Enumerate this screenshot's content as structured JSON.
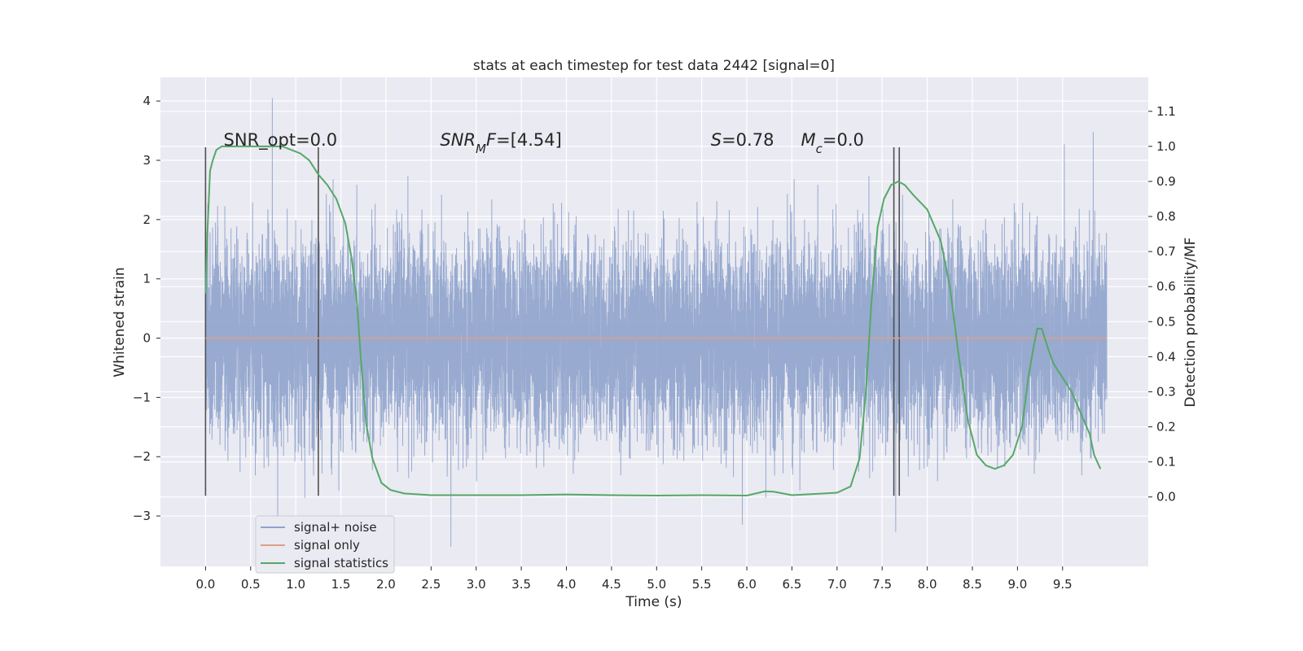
{
  "chart_data": {
    "type": "line",
    "title": "stats at each timestep for test data 2442 [signal=0]",
    "xlabel": "Time (s)",
    "ylabel": "Whitened strain",
    "y2label": "Detection probability/MF",
    "xlim": [
      -0.5,
      10.45
    ],
    "ylim": [
      -3.85,
      4.4
    ],
    "y2lim": [
      -0.198,
      1.197
    ],
    "xticks": [
      0.0,
      0.5,
      1.0,
      1.5,
      2.0,
      2.5,
      3.0,
      3.5,
      4.0,
      4.5,
      5.0,
      5.5,
      6.0,
      6.5,
      7.0,
      7.5,
      8.0,
      8.5,
      9.0,
      9.5
    ],
    "xtick_labels": [
      "0.0",
      "0.5",
      "1.0",
      "1.5",
      "2.0",
      "2.5",
      "3.0",
      "3.5",
      "4.0",
      "4.5",
      "5.0",
      "5.5",
      "6.0",
      "6.5",
      "7.0",
      "7.5",
      "8.0",
      "8.5",
      "9.0",
      "9.5"
    ],
    "yticks": [
      -3,
      -2,
      -1,
      0,
      1,
      2,
      3,
      4
    ],
    "ytick_labels": [
      "−3",
      "−2",
      "−1",
      "0",
      "1",
      "2",
      "3",
      "4"
    ],
    "y2ticks": [
      0.0,
      0.1,
      0.2,
      0.3,
      0.4,
      0.5,
      0.6,
      0.7,
      0.8,
      0.9,
      1.0,
      1.1
    ],
    "y2tick_labels": [
      "0.0",
      "0.1",
      "0.2",
      "0.3",
      "0.4",
      "0.5",
      "0.6",
      "0.7",
      "0.8",
      "0.9",
      "1.0",
      "1.1"
    ],
    "grid": true,
    "legend_placement": "lower-left",
    "annotations": [
      {
        "text_parts": [
          {
            "t": "SNR_opt=0.0",
            "style": "normal"
          }
        ],
        "x": 0.2
      },
      {
        "text_parts": [
          {
            "t": "SNR",
            "style": "italic"
          },
          {
            "t": "M",
            "style": "italic-sub"
          },
          {
            "t": "F",
            "style": "italic"
          },
          {
            "t": "=[4.54]",
            "style": "normal"
          }
        ],
        "x": 2.6
      },
      {
        "text_parts": [
          {
            "t": "S",
            "style": "italic"
          },
          {
            "t": "=0.78",
            "style": "normal"
          }
        ],
        "x": 5.6
      },
      {
        "text_parts": [
          {
            "t": "M",
            "style": "italic"
          },
          {
            "t": "c",
            "style": "italic-sub"
          },
          {
            "t": "=0.0",
            "style": "normal"
          }
        ],
        "x": 6.6
      }
    ],
    "annotation_y": 3.25,
    "vertical_markers": {
      "x": [
        0.0,
        1.25,
        7.63,
        7.69
      ],
      "ymin": -2.66,
      "ymax": 3.22,
      "color": "#505050"
    },
    "series": [
      {
        "name": "signal+ noise",
        "axis": "left",
        "color": "#8fa3cc",
        "kind": "noise",
        "x_start": 0.0,
        "x_end": 9.99,
        "sample_rate": 1024,
        "std": 0.85,
        "observed_min": -3.52,
        "observed_max": 4.05,
        "spike_peaks": [
          {
            "x": 0.74,
            "y": 4.05
          },
          {
            "x": 9.52,
            "y": 3.27
          },
          {
            "x": 9.84,
            "y": 3.48
          },
          {
            "x": 2.72,
            "y": -3.52
          },
          {
            "x": 7.65,
            "y": -3.27
          },
          {
            "x": 5.95,
            "y": -3.15
          },
          {
            "x": 0.8,
            "y": -3.05
          }
        ]
      },
      {
        "name": "signal only",
        "axis": "left",
        "color": "#dd9f86",
        "kind": "constant",
        "x": [
          0.0,
          9.99
        ],
        "y": [
          0.0,
          0.0
        ]
      },
      {
        "name": "signal statistics",
        "axis": "right",
        "color": "#55a868",
        "kind": "line",
        "x": [
          0.0,
          0.02,
          0.05,
          0.08,
          0.12,
          0.18,
          0.3,
          0.5,
          0.7,
          0.85,
          0.95,
          1.05,
          1.15,
          1.25,
          1.35,
          1.45,
          1.55,
          1.62,
          1.68,
          1.72,
          1.78,
          1.85,
          1.95,
          2.05,
          2.2,
          2.5,
          3.0,
          3.5,
          4.0,
          4.5,
          5.0,
          5.5,
          6.0,
          6.2,
          6.3,
          6.5,
          7.0,
          7.15,
          7.25,
          7.32,
          7.38,
          7.45,
          7.52,
          7.6,
          7.68,
          7.75,
          7.85,
          8.0,
          8.15,
          8.25,
          8.35,
          8.45,
          8.55,
          8.65,
          8.75,
          8.85,
          8.95,
          9.05,
          9.12,
          9.18,
          9.22,
          9.27,
          9.33,
          9.4,
          9.5,
          9.6,
          9.7,
          9.8,
          9.85,
          9.92
        ],
        "y": [
          0.58,
          0.75,
          0.93,
          0.96,
          0.99,
          1.0,
          1.0,
          1.0,
          1.0,
          1.0,
          0.99,
          0.98,
          0.96,
          0.92,
          0.89,
          0.85,
          0.78,
          0.68,
          0.55,
          0.4,
          0.21,
          0.11,
          0.04,
          0.02,
          0.01,
          0.005,
          0.005,
          0.005,
          0.007,
          0.005,
          0.004,
          0.005,
          0.004,
          0.016,
          0.015,
          0.005,
          0.012,
          0.03,
          0.11,
          0.3,
          0.55,
          0.77,
          0.85,
          0.89,
          0.9,
          0.89,
          0.86,
          0.82,
          0.73,
          0.6,
          0.4,
          0.22,
          0.12,
          0.09,
          0.08,
          0.09,
          0.12,
          0.2,
          0.34,
          0.43,
          0.48,
          0.48,
          0.43,
          0.38,
          0.34,
          0.3,
          0.24,
          0.18,
          0.12,
          0.08
        ]
      }
    ]
  }
}
